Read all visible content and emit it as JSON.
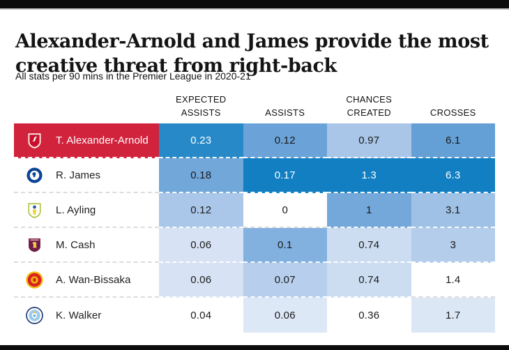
{
  "header": {
    "title": "Alexander-Arnold and James provide the most creative threat from right-back",
    "subtitle": "All stats per 90 mins in the Premier League in 2020-21"
  },
  "colors": {
    "highlight_row_red": "#d2233c",
    "max_value_blue": "#117fc2",
    "text_dark": "#1a1a1a",
    "text_light": "#ffffff"
  },
  "chart_data": {
    "type": "heatmap",
    "title": "Alexander-Arnold and James provide the most creative threat from right-back",
    "subtitle": "All stats per 90 mins in the Premier League in 2020-21",
    "columns": [
      "EXPECTED\nASSISTS",
      "ASSISTS",
      "CHANCES\nCREATED",
      "CROSSES"
    ],
    "rows": [
      {
        "player": "T. Alexander-Arnold",
        "club": "liverpool",
        "crest_icon": "liverpool-crest-icon",
        "highlight": true,
        "label_bg": "#d2233c",
        "label_fg": "#ffffff",
        "values_numeric": [
          0.23,
          0.12,
          0.97,
          6.1
        ],
        "cells": [
          {
            "value": "0.23",
            "bg": "#2789c8",
            "fg": "#ffffff"
          },
          {
            "value": "0.12",
            "bg": "#6ba3d8",
            "fg": "#1a1a1a"
          },
          {
            "value": "0.97",
            "bg": "#a9c6e8",
            "fg": "#1a1a1a"
          },
          {
            "value": "6.1",
            "bg": "#649fd6",
            "fg": "#1a1a1a"
          }
        ]
      },
      {
        "player": "R. James",
        "club": "chelsea",
        "crest_icon": "chelsea-crest-icon",
        "highlight": false,
        "label_bg": "#ffffff",
        "label_fg": "#1d1d1d",
        "values_numeric": [
          0.18,
          0.17,
          1.3,
          6.3
        ],
        "cells": [
          {
            "value": "0.18",
            "bg": "#72a7da",
            "fg": "#1a1a1a"
          },
          {
            "value": "0.17",
            "bg": "#117fc2",
            "fg": "#ffffff"
          },
          {
            "value": "1.3",
            "bg": "#117fc2",
            "fg": "#ffffff"
          },
          {
            "value": "6.3",
            "bg": "#117fc2",
            "fg": "#ffffff"
          }
        ]
      },
      {
        "player": "L. Ayling",
        "club": "leeds",
        "crest_icon": "leeds-crest-icon",
        "highlight": false,
        "label_bg": "#ffffff",
        "label_fg": "#1d1d1d",
        "values_numeric": [
          0.12,
          0,
          1,
          3.1
        ],
        "cells": [
          {
            "value": "0.12",
            "bg": "#aac7e9",
            "fg": "#1a1a1a"
          },
          {
            "value": "0",
            "bg": "#ffffff",
            "fg": "#1a1a1a"
          },
          {
            "value": "1",
            "bg": "#74a8da",
            "fg": "#1a1a1a"
          },
          {
            "value": "3.1",
            "bg": "#a0c1e6",
            "fg": "#1a1a1a"
          }
        ]
      },
      {
        "player": "M. Cash",
        "club": "aston-villa",
        "crest_icon": "aston-villa-crest-icon",
        "highlight": false,
        "label_bg": "#ffffff",
        "label_fg": "#1d1d1d",
        "values_numeric": [
          0.06,
          0.1,
          0.74,
          3
        ],
        "cells": [
          {
            "value": "0.06",
            "bg": "#d7e3f4",
            "fg": "#1a1a1a"
          },
          {
            "value": "0.1",
            "bg": "#83b1df",
            "fg": "#1a1a1a"
          },
          {
            "value": "0.74",
            "bg": "#ccddf1",
            "fg": "#1a1a1a"
          },
          {
            "value": "3",
            "bg": "#b4cdeb",
            "fg": "#1a1a1a"
          }
        ]
      },
      {
        "player": "A. Wan-Bissaka",
        "club": "man-united",
        "crest_icon": "man-united-crest-icon",
        "highlight": false,
        "label_bg": "#ffffff",
        "label_fg": "#1d1d1d",
        "values_numeric": [
          0.06,
          0.07,
          0.74,
          1.4
        ],
        "cells": [
          {
            "value": "0.06",
            "bg": "#d7e3f4",
            "fg": "#1a1a1a"
          },
          {
            "value": "0.07",
            "bg": "#b7cfec",
            "fg": "#1a1a1a"
          },
          {
            "value": "0.74",
            "bg": "#ccddf1",
            "fg": "#1a1a1a"
          },
          {
            "value": "1.4",
            "bg": "#ffffff",
            "fg": "#1a1a1a"
          }
        ]
      },
      {
        "player": "K. Walker",
        "club": "man-city",
        "crest_icon": "man-city-crest-icon",
        "highlight": false,
        "label_bg": "#ffffff",
        "label_fg": "#1d1d1d",
        "values_numeric": [
          0.04,
          0.06,
          0.36,
          1.7
        ],
        "cells": [
          {
            "value": "0.04",
            "bg": "#ffffff",
            "fg": "#1a1a1a"
          },
          {
            "value": "0.06",
            "bg": "#dde8f6",
            "fg": "#1a1a1a"
          },
          {
            "value": "0.36",
            "bg": "#ffffff",
            "fg": "#1a1a1a"
          },
          {
            "value": "1.7",
            "bg": "#dce7f5",
            "fg": "#1a1a1a"
          }
        ]
      }
    ]
  }
}
